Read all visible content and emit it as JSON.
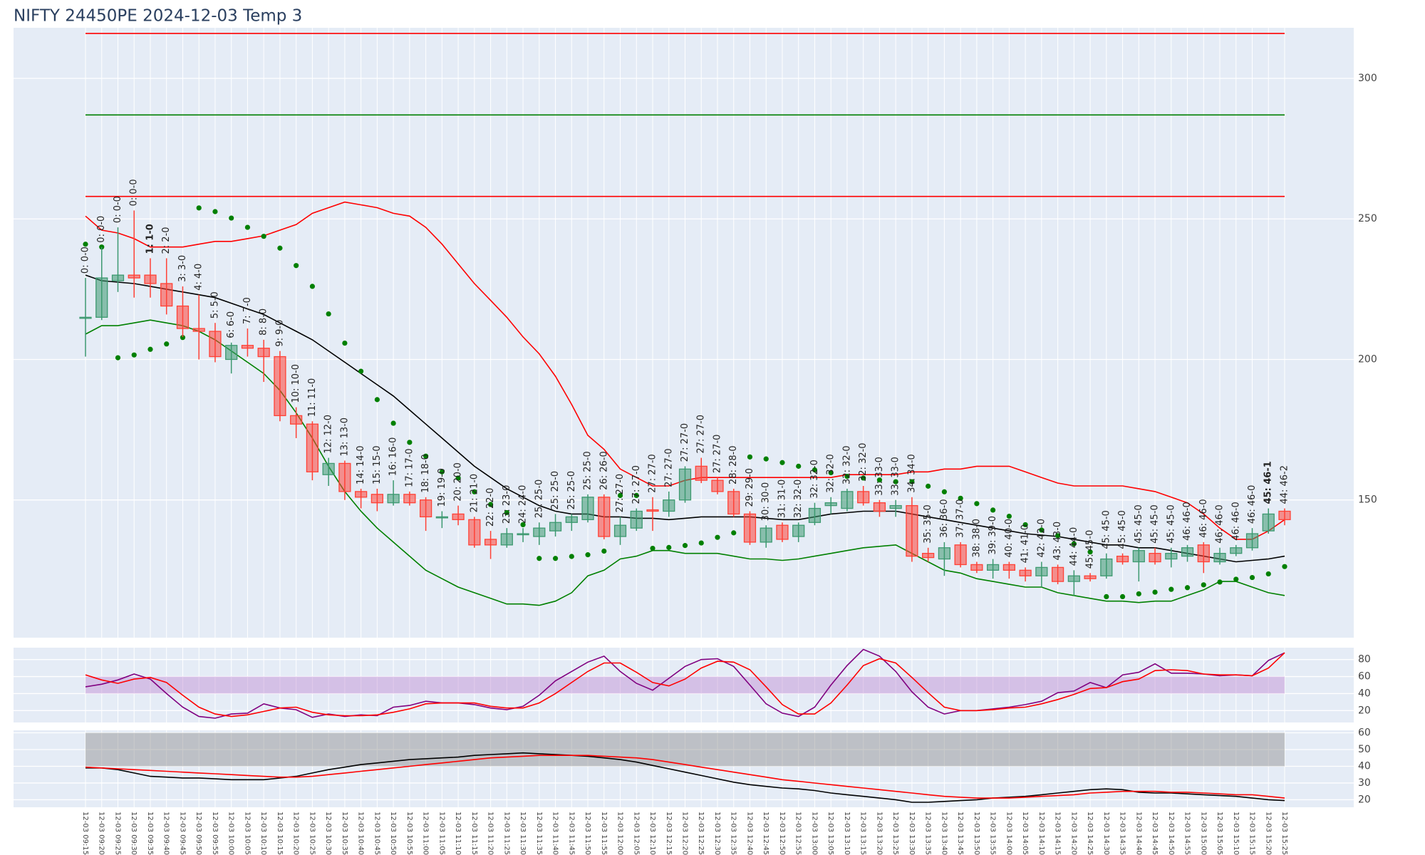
{
  "chart_data": [
    {
      "type": "candlestick",
      "title": "NIFTY 24450PE 2024-12-03 Temp 3",
      "x": [
        "12-03 09:15",
        "12-03 09:20",
        "12-03 09:25",
        "12-03 09:30",
        "12-03 09:35",
        "12-03 09:40",
        "12-03 09:45",
        "12-03 09:50",
        "12-03 09:55",
        "12-03 10:00",
        "12-03 10:05",
        "12-03 10:10",
        "12-03 10:15",
        "12-03 10:20",
        "12-03 10:25",
        "12-03 10:30",
        "12-03 10:35",
        "12-03 10:40",
        "12-03 10:45",
        "12-03 10:50",
        "12-03 10:55",
        "12-03 11:00",
        "12-03 11:05",
        "12-03 11:10",
        "12-03 11:15",
        "12-03 11:20",
        "12-03 11:25",
        "12-03 11:30",
        "12-03 11:35",
        "12-03 11:40",
        "12-03 11:45",
        "12-03 11:50",
        "12-03 11:55",
        "12-03 12:00",
        "12-03 12:05",
        "12-03 12:10",
        "12-03 12:15",
        "12-03 12:20",
        "12-03 12:25",
        "12-03 12:30",
        "12-03 12:35",
        "12-03 12:40",
        "12-03 12:45",
        "12-03 12:50",
        "12-03 12:55",
        "12-03 13:00",
        "12-03 13:05",
        "12-03 13:10",
        "12-03 13:15",
        "12-03 13:20",
        "12-03 13:25",
        "12-03 13:30",
        "12-03 13:35",
        "12-03 13:40",
        "12-03 13:45",
        "12-03 13:50",
        "12-03 13:55",
        "12-03 14:00",
        "12-03 14:05",
        "12-03 14:10",
        "12-03 14:15",
        "12-03 14:20",
        "12-03 14:25",
        "12-03 14:30",
        "12-03 14:35",
        "12-03 14:40",
        "12-03 14:45",
        "12-03 14:50",
        "12-03 14:55",
        "12-03 15:00",
        "12-03 15:05",
        "12-03 15:10",
        "12-03 15:15",
        "12-03 15:20",
        "12-03 15:25"
      ],
      "open": [
        215,
        215,
        228,
        230,
        230,
        227,
        219,
        211,
        210,
        200,
        205,
        204,
        201,
        180,
        177,
        159,
        163,
        153,
        152,
        149,
        152,
        150,
        144,
        145,
        143,
        136,
        134,
        138,
        137,
        139,
        142,
        143,
        151,
        137,
        140,
        146.5,
        146,
        150,
        162,
        157,
        153,
        145,
        135,
        141,
        137,
        142,
        148,
        147,
        153,
        149,
        147,
        148,
        131,
        129,
        134,
        127,
        125,
        127,
        125,
        123,
        126,
        121,
        123,
        123,
        130,
        128,
        131,
        129,
        130,
        134,
        128,
        131,
        133,
        139,
        146
      ],
      "high": [
        229,
        240,
        247,
        253,
        236,
        236,
        226,
        223,
        213,
        206,
        211,
        207,
        203,
        183,
        178,
        165,
        164,
        154,
        154,
        157,
        153,
        151,
        146,
        148,
        144,
        139,
        140,
        140,
        142,
        145,
        145,
        152,
        152,
        144,
        147,
        151,
        153,
        162,
        165,
        158,
        154,
        146,
        141,
        142,
        142,
        149,
        151,
        154,
        155,
        150,
        150,
        151,
        133,
        135,
        135,
        128,
        129,
        128,
        126,
        128,
        127,
        125,
        124,
        131,
        131,
        133,
        133,
        133,
        134,
        135,
        133,
        134,
        140,
        147,
        147
      ],
      "low": [
        201,
        214,
        224,
        222,
        222,
        216,
        208,
        200,
        199,
        195,
        201,
        192,
        178,
        172,
        157,
        155,
        150,
        147,
        146,
        148,
        148,
        139,
        140,
        141,
        133,
        129,
        133,
        135,
        134,
        137,
        139,
        142,
        136,
        134,
        139,
        139,
        144,
        149,
        156,
        152,
        144,
        134,
        133,
        135,
        135,
        141,
        145,
        146,
        148,
        144,
        144,
        128,
        128,
        123,
        126,
        124,
        122,
        122,
        121,
        119,
        120,
        116,
        121,
        122,
        127,
        121,
        127,
        126,
        128,
        124,
        127,
        130,
        132,
        138,
        141
      ],
      "close": [
        215,
        229,
        230,
        229,
        227,
        219,
        211,
        210,
        201,
        205,
        204,
        201,
        180,
        177,
        160,
        163,
        153,
        151,
        149,
        152,
        149,
        144,
        144,
        143,
        134,
        134,
        138,
        138,
        140,
        142,
        144,
        151,
        137,
        141,
        146,
        146,
        150,
        161,
        157,
        153,
        145,
        135,
        140,
        136,
        141,
        147,
        149,
        153,
        149,
        146,
        148,
        130,
        129.5,
        133,
        127,
        125,
        127,
        125,
        123,
        126,
        121,
        123,
        122,
        129,
        128,
        132,
        128,
        131,
        133,
        128,
        131,
        133,
        138,
        145,
        143
      ],
      "increasing_color": "#3d9970",
      "decreasing_color": "#ff4136",
      "series": [
        {
          "color": "red",
          "values": [
            251,
            246,
            245,
            243,
            240,
            240,
            240,
            241,
            242,
            242,
            243,
            244,
            246,
            248,
            252,
            254,
            256,
            255,
            254,
            252,
            251,
            247,
            241,
            234,
            227,
            221,
            215,
            208,
            202,
            194,
            184,
            173,
            168,
            161,
            158,
            155,
            155,
            157,
            158,
            158,
            158,
            158,
            158,
            158,
            158,
            158,
            158,
            159,
            159,
            159,
            159,
            160,
            160,
            161,
            161,
            162,
            162,
            162,
            160,
            158,
            156,
            155,
            155,
            155,
            155,
            154,
            153,
            151,
            149,
            145,
            140,
            136,
            136,
            139,
            143
          ]
        },
        {
          "color": "green",
          "values": [
            209,
            212,
            212,
            213,
            214,
            213,
            212,
            210,
            207,
            203,
            199,
            195,
            189,
            181,
            172,
            162,
            153,
            146,
            140,
            135,
            130,
            125,
            122,
            119,
            117,
            115,
            113,
            113,
            112.5,
            114,
            117,
            123,
            125,
            129,
            130,
            132,
            132,
            131,
            131,
            131,
            130,
            129,
            129,
            128.5,
            129,
            130,
            131,
            132,
            133,
            133.5,
            134,
            131,
            128,
            125,
            124,
            122,
            121,
            120,
            119,
            119,
            117,
            116,
            115,
            114,
            114,
            113.5,
            114,
            114,
            116,
            118,
            121,
            121,
            119,
            117,
            116
          ]
        },
        {
          "color": "black",
          "values": [
            230,
            228,
            227.5,
            227,
            226,
            225,
            224,
            223,
            222,
            220,
            218,
            216,
            213,
            210,
            207,
            203,
            199,
            195,
            191,
            187,
            182,
            177,
            172,
            167,
            162,
            158,
            154,
            151,
            148,
            146,
            145,
            145,
            144,
            144,
            143.5,
            143.5,
            143,
            143.5,
            144,
            144,
            144,
            144,
            143.5,
            143,
            143,
            144,
            145,
            145.5,
            146,
            146,
            146,
            145,
            144,
            143,
            142,
            141,
            140,
            139,
            138,
            137.5,
            137,
            136,
            135,
            134,
            134,
            133,
            133,
            132,
            131,
            130,
            129,
            128,
            128.5,
            129,
            130
          ]
        },
        {
          "color": "green",
          "mode": "markers",
          "values": [
            241,
            240,
            200.6,
            201.6,
            203.6,
            205.5,
            207.8,
            253.9,
            252.6,
            250.3,
            247,
            243.8,
            239.6,
            233.4,
            226,
            216.2,
            205.8,
            195.8,
            185.7,
            177.3,
            170.5,
            165.6,
            160,
            157.8,
            152.9,
            148.4,
            145.5,
            141.2,
            129.2,
            129.2,
            129.9,
            130.5,
            131.8,
            151.6,
            151.6,
            132.8,
            133.1,
            133.8,
            134.7,
            136.7,
            138.3,
            165.3,
            164.6,
            163.3,
            162,
            160.7,
            159.7,
            158.4,
            157.8,
            157.1,
            156.5,
            156.5,
            154.9,
            152.9,
            150.6,
            148.7,
            146.4,
            144.2,
            141.2,
            139.3,
            137.3,
            134.4,
            131.5,
            115.6,
            115.6,
            116.6,
            117.2,
            118.2,
            118.8,
            119.8,
            120.8,
            121.8,
            122.4,
            123.7,
            126.3
          ]
        }
      ],
      "hlines": [
        {
          "value": 316,
          "color": "red"
        },
        {
          "value": 287,
          "color": "green"
        },
        {
          "value": 258,
          "color": "red"
        }
      ],
      "annotations": [
        "0: 0-0",
        "0: 0-0",
        "0: 0-0",
        "0: 0-0",
        "1: 1-0",
        "2: 2-0",
        "3: 3-0",
        "4: 4-0",
        "5: 5-0",
        "6: 6-0",
        "7: 7-0",
        "8: 8-0",
        "9: 9-0",
        "10: 10-0",
        "11: 11-0",
        "12: 12-0",
        "13: 13-0",
        "14: 14-0",
        "15: 15-0",
        "16: 16-0",
        "17: 17-0",
        "18: 18-0",
        "19: 19-0",
        "20: 20-0",
        "21: 21-0",
        "22: 22-0",
        "23: 23-0",
        "24: 24-0",
        "25: 25-0",
        "25: 25-0",
        "25: 25-0",
        "25: 25-0",
        "26: 26-0",
        "27: 27-0",
        "27: 27-0",
        "27: 27-0",
        "27: 27-0",
        "27: 27-0",
        "27: 27-0",
        "27: 27-0",
        "28: 28-0",
        "29: 29-0",
        "30: 30-0",
        "31: 31-0",
        "32: 32-0",
        "32: 32-0",
        "32: 32-0",
        "32: 32-0",
        "32: 32-0",
        "33: 33-0",
        "33: 33-0",
        "34: 34-0",
        "35: 35-0",
        "36: 36-0",
        "37: 37-0",
        "38: 38-0",
        "39: 39-0",
        "40: 40-0",
        "41: 41-0",
        "42: 42-0",
        "43: 43-0",
        "44: 44-0",
        "45: 45-0",
        "45: 45-0",
        "45: 45-0",
        "45: 45-0",
        "45: 45-0",
        "45: 45-0",
        "46: 46-0",
        "46: 46-0",
        "46: 46-0",
        "46: 46-0",
        "46: 46-0",
        "45: 46-1",
        "44: 46-2"
      ],
      "bold_annotations": [
        4,
        73
      ],
      "ylim": [
        101,
        318
      ],
      "yticks": [
        150,
        200,
        250,
        300
      ],
      "grid": true
    },
    {
      "type": "line",
      "series": [
        {
          "color": "purple",
          "values": [
            48,
            51,
            56,
            63,
            57,
            40,
            24,
            13,
            11,
            16,
            17,
            28,
            23,
            21,
            12,
            16,
            13,
            15,
            14,
            24,
            26,
            31,
            29,
            29,
            27,
            23,
            21,
            25,
            38,
            55,
            66,
            77,
            84,
            66,
            52,
            44,
            58,
            72,
            80,
            81,
            72,
            50,
            28,
            17,
            13,
            24,
            50,
            73,
            92,
            84,
            66,
            42,
            24,
            16,
            20,
            20,
            22,
            24,
            27,
            31,
            41,
            43,
            53,
            47,
            62,
            65,
            75,
            64,
            64,
            63,
            61,
            62,
            61,
            79,
            88
          ]
        },
        {
          "color": "red",
          "values": [
            62,
            56,
            52,
            57,
            59,
            53,
            38,
            24,
            16,
            13,
            15,
            19,
            23,
            24,
            18,
            15,
            14,
            14,
            15,
            18,
            22,
            28,
            29,
            29,
            29,
            25,
            23,
            23,
            29,
            40,
            53,
            66,
            76,
            76,
            65,
            53,
            49,
            57,
            70,
            78,
            77,
            68,
            48,
            27,
            16,
            16,
            29,
            50,
            73,
            81,
            76,
            59,
            41,
            24,
            20,
            20,
            21,
            23,
            24,
            28,
            33,
            39,
            46,
            47,
            54,
            57,
            67,
            68,
            67,
            63,
            62,
            62,
            61,
            70,
            88
          ]
        }
      ],
      "band": {
        "range": [
          40,
          60
        ],
        "color": "rgba(190,140,210,0.45)"
      },
      "ylim": [
        6,
        94
      ],
      "yticks": [
        20,
        40,
        60,
        80
      ],
      "grid": true
    },
    {
      "type": "line",
      "series": [
        {
          "color": "black",
          "values": [
            39,
            39,
            38,
            36,
            34,
            33.5,
            33,
            33,
            32.5,
            32,
            32,
            32,
            33,
            34,
            36,
            38,
            39.5,
            41,
            42,
            43,
            44,
            44.5,
            45,
            45.5,
            46.5,
            47,
            47.5,
            48,
            47.5,
            47,
            46.5,
            46,
            45,
            44,
            42.5,
            40.5,
            38.5,
            36.5,
            34.5,
            32.5,
            30.5,
            29,
            28,
            27,
            26.5,
            25.5,
            24,
            23,
            22,
            21,
            20,
            18.5,
            18.5,
            19,
            19.5,
            20,
            21,
            21.5,
            22,
            23,
            24,
            25,
            26,
            26.5,
            26,
            24.5,
            24,
            24,
            23.5,
            23,
            22.5,
            22,
            21,
            20,
            19.5
          ]
        },
        {
          "color": "red",
          "values": [
            39.5,
            39,
            38.5,
            38,
            37.5,
            37,
            36.5,
            36,
            35.5,
            35,
            34.5,
            34,
            33.5,
            33.5,
            34,
            35,
            36,
            37,
            38,
            39,
            40,
            41,
            42,
            43,
            44,
            45,
            45.5,
            46,
            46.5,
            46.5,
            46.5,
            46.5,
            46,
            45.5,
            45,
            44,
            42.5,
            41,
            39.5,
            38,
            36.5,
            35,
            33.5,
            32,
            31,
            30,
            29,
            28,
            27,
            26,
            25,
            24,
            23,
            22,
            21.5,
            21,
            21,
            21,
            21.5,
            22,
            22.5,
            23,
            24,
            24.5,
            25,
            25,
            25,
            24.5,
            24.5,
            24,
            23.5,
            23,
            23,
            22,
            21
          ]
        }
      ],
      "band": {
        "range": [
          40,
          60
        ],
        "color": "rgba(140,140,140,0.45)"
      },
      "ylim": [
        15.5,
        61.5
      ],
      "yticks": [
        20,
        30,
        40,
        50,
        60
      ],
      "grid": true
    }
  ]
}
